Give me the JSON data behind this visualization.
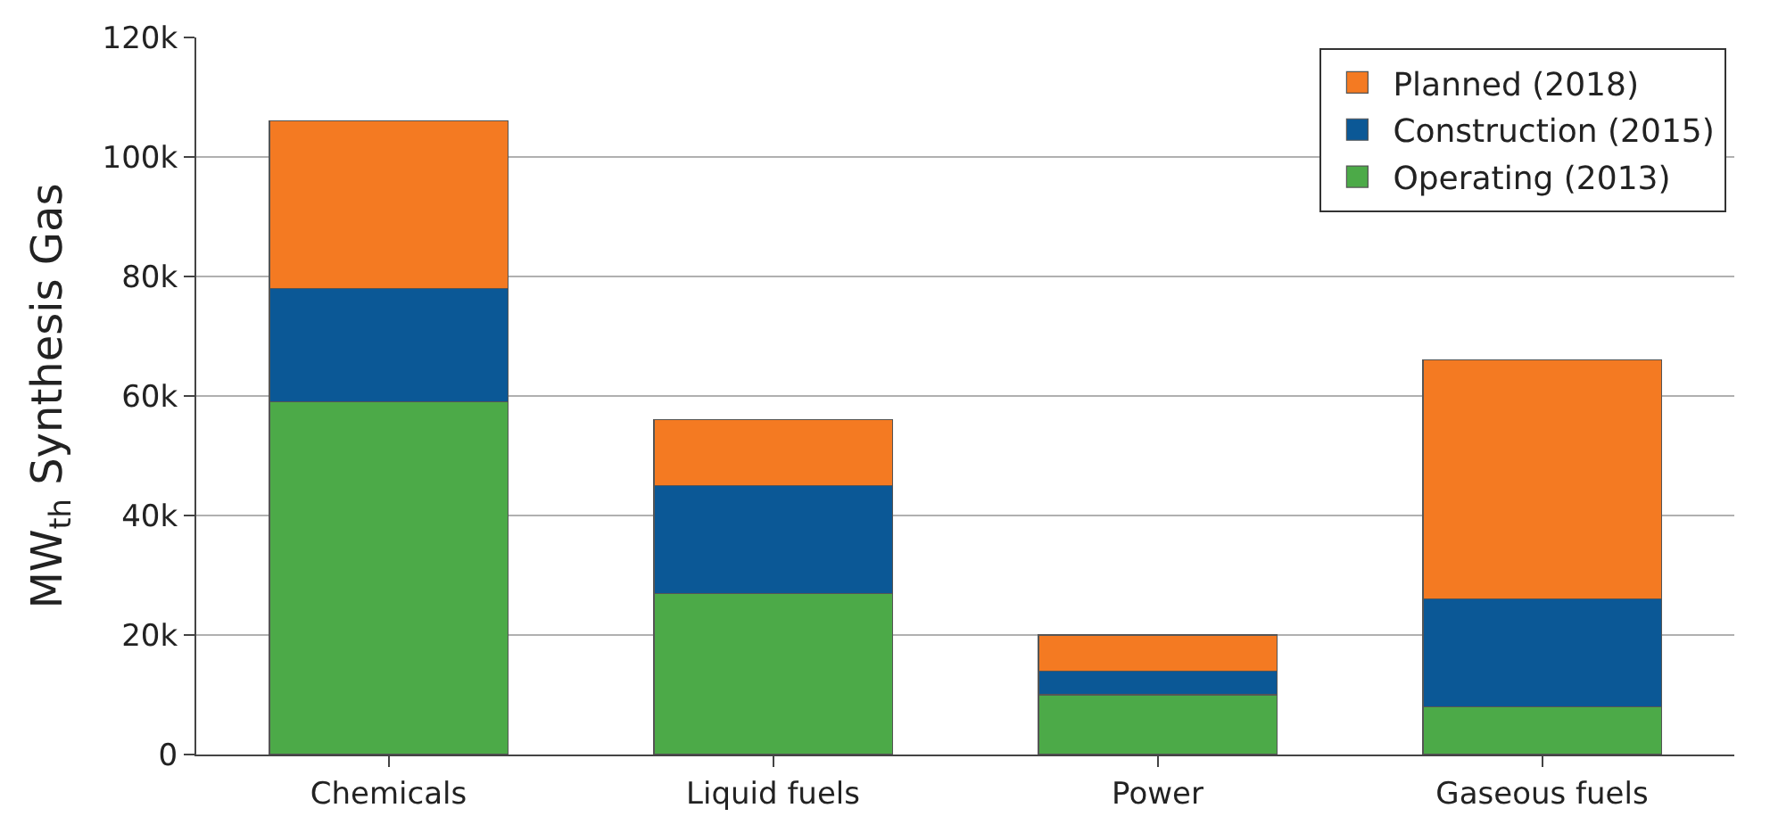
{
  "chart_data": {
    "type": "bar",
    "stacked": true,
    "ylabel": "MW$_{th}$ Synthesis Gas",
    "categories": [
      "Chemicals",
      "Liquid fuels",
      "Power",
      "Gaseous fuels"
    ],
    "series": [
      {
        "name": "Operating (2013)",
        "color": "#4caa48",
        "values": [
          59000,
          27000,
          10000,
          8000
        ]
      },
      {
        "name": "Construction (2015)",
        "color": "#0b5896",
        "values": [
          19000,
          18000,
          4000,
          18000
        ]
      },
      {
        "name": "Planned (2018)",
        "color": "#f47a22",
        "values": [
          28000,
          11000,
          6000,
          40000
        ]
      }
    ],
    "ylim": [
      0,
      120000
    ],
    "yticks": [
      {
        "value": 0,
        "label": "0"
      },
      {
        "value": 20000,
        "label": "20k"
      },
      {
        "value": 40000,
        "label": "40k"
      },
      {
        "value": 60000,
        "label": "60k"
      },
      {
        "value": 80000,
        "label": "80k"
      },
      {
        "value": 100000,
        "label": "100k"
      },
      {
        "value": 120000,
        "label": "120k"
      }
    ],
    "grid": "y",
    "legend": "top right"
  }
}
